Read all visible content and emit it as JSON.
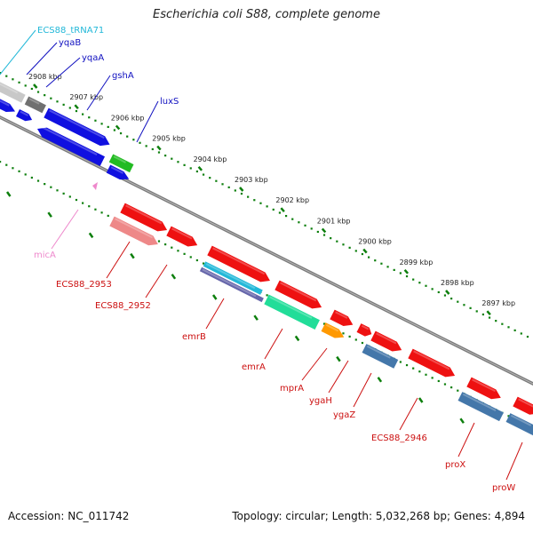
{
  "title": "Escherichia coli S88, complete genome",
  "footer": {
    "accession": "Accession: NC_011742",
    "topology": "Topology: circular; Length: 5,032,268 bp; Genes: 4,894"
  },
  "colors": {
    "background": "#ffffff",
    "backbone": "#7a7a7a",
    "tick_green": "#0d7f0d",
    "forward_gene": "#1010e0",
    "reverse_gene": "#ee1111",
    "trna": "#22b8d8",
    "ncrna": "#ee88cc",
    "grey_gene": "#c8c8c8",
    "dark_grey_gene": "#707070",
    "green_gene": "#22bb22",
    "teal_gene": "#22dd99",
    "orange_gene": "#ff9900",
    "steel_gene": "#4477aa",
    "pink_gene": "#ee8888"
  },
  "kbp_ticks": [
    {
      "label": "2908 kbp"
    },
    {
      "label": "2907 kbp"
    },
    {
      "label": "2906 kbp"
    },
    {
      "label": "2905 kbp"
    },
    {
      "label": "2904 kbp"
    },
    {
      "label": "2903 kbp"
    },
    {
      "label": "2902 kbp"
    },
    {
      "label": "2901 kbp"
    },
    {
      "label": "2900 kbp"
    },
    {
      "label": "2899 kbp"
    },
    {
      "label": "2898 kbp"
    },
    {
      "label": "2897 kbp"
    }
  ],
  "gene_labels": [
    {
      "name": "ECS88_tRNA71",
      "color": "#22b8d8"
    },
    {
      "name": "yqaB",
      "color": "#1010c0"
    },
    {
      "name": "yqaA",
      "color": "#1010c0"
    },
    {
      "name": "gshA",
      "color": "#1010c0"
    },
    {
      "name": "luxS",
      "color": "#1010c0"
    },
    {
      "name": "micA",
      "color": "#ee88cc"
    },
    {
      "name": "ECS88_2953",
      "color": "#cc1111"
    },
    {
      "name": "ECS88_2952",
      "color": "#cc1111"
    },
    {
      "name": "emrB",
      "color": "#cc1111"
    },
    {
      "name": "emrA",
      "color": "#cc1111"
    },
    {
      "name": "mprA",
      "color": "#cc1111"
    },
    {
      "name": "ygaH",
      "color": "#cc1111"
    },
    {
      "name": "ygaZ",
      "color": "#cc1111"
    },
    {
      "name": "ECS88_2946",
      "color": "#cc1111"
    },
    {
      "name": "proX",
      "color": "#cc1111"
    },
    {
      "name": "proW",
      "color": "#cc1111"
    }
  ]
}
